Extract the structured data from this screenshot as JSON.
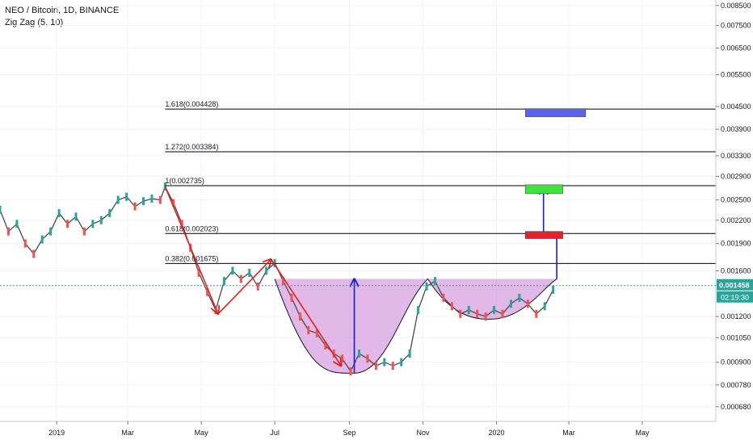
{
  "legend": {
    "symbol": "NEO / Bitcoin, 1D, BINANCE",
    "indicator": "Zig Zag (5, 10)"
  },
  "colors": {
    "fib_line": "#000000",
    "cup_fill": "#c97ed4",
    "arrow_red": "#e0221c",
    "arrow_blue": "#1a1adb",
    "box_blue": "#5c62f0",
    "box_green": "#3de43d",
    "box_red": "#e8202a",
    "current_price_bg": "#26a69a",
    "countdown_bg": "#26a69a"
  },
  "chart_data": {
    "type": "line",
    "price_scale": "log",
    "ylim": [
      0.00062,
      0.0088
    ],
    "xlim": [
      "2018-11-15",
      "2020-07-01"
    ],
    "x_ticks": [
      {
        "label": "2019",
        "date": "2019-01-01"
      },
      {
        "label": "Mar",
        "date": "2019-03-01"
      },
      {
        "label": "May",
        "date": "2019-05-01"
      },
      {
        "label": "Jul",
        "date": "2019-07-01"
      },
      {
        "label": "Sep",
        "date": "2019-09-01"
      },
      {
        "label": "Nov",
        "date": "2019-11-01"
      },
      {
        "label": "2020",
        "date": "2020-01-01"
      },
      {
        "label": "Mar",
        "date": "2020-03-01"
      },
      {
        "label": "May",
        "date": "2020-05-01"
      }
    ],
    "y_ticks": [
      "0.008500",
      "0.007500",
      "0.006500",
      "0.005500",
      "0.004500",
      "0.003900",
      "0.003300",
      "0.002900",
      "0.002500",
      "0.002200",
      "0.001900",
      "0.001600",
      "0.001200",
      "0.001050",
      "0.000900",
      "0.000780",
      "0.000680"
    ],
    "current_price": "0.001458",
    "countdown": "02:19:30",
    "fib_levels": [
      {
        "label": "1.618(0.004428)",
        "value": 0.004428
      },
      {
        "label": "1.272(0.003384)",
        "value": 0.003384
      },
      {
        "label": "1(0.002735)",
        "value": 0.002735
      },
      {
        "label": "0.618(0.002023)",
        "value": 0.002023
      },
      {
        "label": "0.382(0.001675)",
        "value": 0.001675
      }
    ],
    "fib_start": "2019-04-01",
    "series": [
      {
        "points": [
          [
            "2018-11-15",
            0.00235
          ],
          [
            "2018-11-22",
            0.00205
          ],
          [
            "2018-11-29",
            0.00215
          ],
          [
            "2018-12-06",
            0.0019
          ],
          [
            "2018-12-13",
            0.00178
          ],
          [
            "2018-12-20",
            0.00195
          ],
          [
            "2018-12-27",
            0.00205
          ],
          [
            "2019-01-03",
            0.0023
          ],
          [
            "2019-01-10",
            0.00215
          ],
          [
            "2019-01-17",
            0.00225
          ],
          [
            "2019-01-24",
            0.00205
          ],
          [
            "2019-01-31",
            0.00215
          ],
          [
            "2019-02-07",
            0.0022
          ],
          [
            "2019-02-14",
            0.0023
          ],
          [
            "2019-02-21",
            0.0025
          ],
          [
            "2019-02-28",
            0.00255
          ],
          [
            "2019-03-07",
            0.0024
          ],
          [
            "2019-03-14",
            0.00248
          ],
          [
            "2019-03-21",
            0.00252
          ],
          [
            "2019-03-28",
            0.0025
          ],
          [
            "2019-04-01",
            0.00272
          ],
          [
            "2019-04-08",
            0.00245
          ],
          [
            "2019-04-15",
            0.00215
          ],
          [
            "2019-04-22",
            0.00185
          ],
          [
            "2019-04-29",
            0.00158
          ],
          [
            "2019-05-06",
            0.0014
          ],
          [
            "2019-05-13",
            0.00125
          ],
          [
            "2019-05-20",
            0.0015
          ],
          [
            "2019-05-27",
            0.0016
          ],
          [
            "2019-06-03",
            0.00152
          ],
          [
            "2019-06-10",
            0.00158
          ],
          [
            "2019-06-17",
            0.00145
          ],
          [
            "2019-06-24",
            0.0016
          ],
          [
            "2019-07-01",
            0.00168
          ],
          [
            "2019-07-08",
            0.0015
          ],
          [
            "2019-07-15",
            0.00135
          ],
          [
            "2019-07-22",
            0.0012
          ],
          [
            "2019-07-29",
            0.0011
          ],
          [
            "2019-08-05",
            0.00108
          ],
          [
            "2019-08-12",
            0.001
          ],
          [
            "2019-08-19",
            0.00095
          ],
          [
            "2019-08-26",
            0.00092
          ],
          [
            "2019-09-02",
            0.00085
          ],
          [
            "2019-09-09",
            0.00095
          ],
          [
            "2019-09-16",
            0.00092
          ],
          [
            "2019-09-23",
            0.00088
          ],
          [
            "2019-09-30",
            0.0009
          ],
          [
            "2019-10-07",
            0.00088
          ],
          [
            "2019-10-14",
            0.0009
          ],
          [
            "2019-10-21",
            0.00095
          ],
          [
            "2019-10-28",
            0.00125
          ],
          [
            "2019-11-04",
            0.00145
          ],
          [
            "2019-11-11",
            0.0015
          ],
          [
            "2019-11-18",
            0.00135
          ],
          [
            "2019-11-25",
            0.00128
          ],
          [
            "2019-12-02",
            0.00122
          ],
          [
            "2019-12-09",
            0.00125
          ],
          [
            "2019-12-16",
            0.00122
          ],
          [
            "2019-12-23",
            0.0012
          ],
          [
            "2019-12-30",
            0.00125
          ],
          [
            "2020-01-06",
            0.00122
          ],
          [
            "2020-01-13",
            0.0013
          ],
          [
            "2020-01-20",
            0.00135
          ],
          [
            "2020-01-27",
            0.0013
          ],
          [
            "2020-02-03",
            0.00122
          ],
          [
            "2020-02-10",
            0.00128
          ],
          [
            "2020-02-17",
            0.00142
          ]
        ]
      }
    ],
    "zigzag": [
      [
        "2019-04-01",
        0.00272
      ],
      [
        "2019-05-15",
        0.00122
      ],
      [
        "2019-06-28",
        0.00172
      ],
      [
        "2019-08-25",
        0.00088
      ]
    ],
    "cup_handle": {
      "rim_price": 0.00152,
      "cup_start": "2019-07-01",
      "cup_bottom": [
        "2019-09-05",
        0.00084
      ],
      "cup_end": "2019-11-05",
      "handle_bottom": [
        "2019-12-27",
        0.00118
      ],
      "handle_end": "2020-02-20",
      "breakout_target": 0.00272
    },
    "boxes": [
      {
        "color_key": "box_blue",
        "start": "2020-01-25",
        "end": "2020-03-15",
        "top": 0.00444,
        "bottom": 0.00422
      },
      {
        "color_key": "box_green",
        "start": "2020-01-25",
        "end": "2020-02-25",
        "top": 0.00275,
        "bottom": 0.0026
      },
      {
        "color_key": "box_red",
        "start": "2020-01-25",
        "end": "2020-02-25",
        "top": 0.00205,
        "bottom": 0.00196
      }
    ]
  }
}
